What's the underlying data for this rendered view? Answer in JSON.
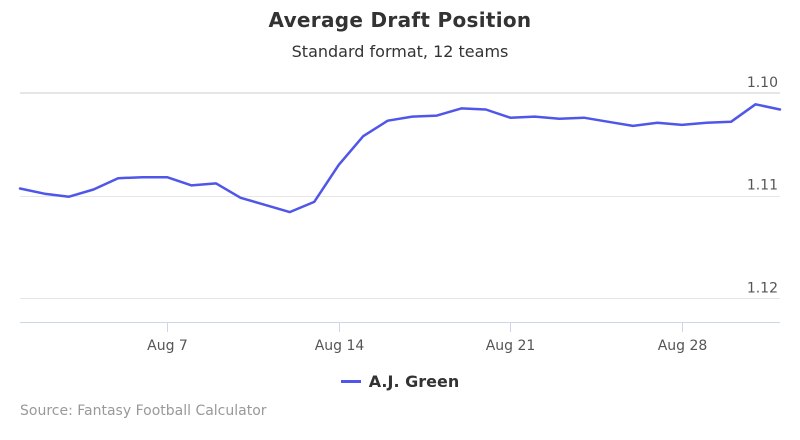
{
  "colors": {
    "series": "#4F56E8",
    "grid": "#e6e6e6",
    "axis": "#ccd6eb"
  },
  "credits": "Source: Fantasy Football Calculator",
  "chart_data": {
    "type": "line",
    "title": "Average Draft Position",
    "subtitle": "Standard format, 12 teams",
    "xlabel": "",
    "ylabel": "",
    "x_tick_labels": [
      "Aug 7",
      "Aug 14",
      "Aug 21",
      "Aug 28"
    ],
    "y_tick_labels": [
      "1.10",
      "1.11",
      "1.12"
    ],
    "y_ticks": [
      1.1,
      1.11,
      1.12
    ],
    "ylim": [
      1.0999,
      1.1223
    ],
    "y_reversed": true,
    "grid": true,
    "legend_position": "bottom-center",
    "x": [
      "Aug 1",
      "Aug 2",
      "Aug 3",
      "Aug 4",
      "Aug 5",
      "Aug 6",
      "Aug 7",
      "Aug 8",
      "Aug 9",
      "Aug 10",
      "Aug 11",
      "Aug 12",
      "Aug 13",
      "Aug 14",
      "Aug 15",
      "Aug 16",
      "Aug 17",
      "Aug 18",
      "Aug 19",
      "Aug 20",
      "Aug 21",
      "Aug 22",
      "Aug 23",
      "Aug 24",
      "Aug 25",
      "Aug 26",
      "Aug 27",
      "Aug 28",
      "Aug 29",
      "Aug 30",
      "Aug 31",
      "Sep 1"
    ],
    "series": [
      {
        "name": "A.J. Green",
        "values": [
          1.1093,
          1.1098,
          1.1101,
          1.1094,
          1.1083,
          1.1082,
          1.1082,
          1.109,
          1.1088,
          1.1102,
          1.1109,
          1.1116,
          1.1106,
          1.107,
          1.1042,
          1.1027,
          1.1023,
          1.1022,
          1.1015,
          1.1016,
          1.1024,
          1.1023,
          1.1025,
          1.1024,
          1.1028,
          1.1032,
          1.1029,
          1.1031,
          1.1029,
          1.1028,
          1.1011,
          1.1016
        ]
      }
    ]
  }
}
